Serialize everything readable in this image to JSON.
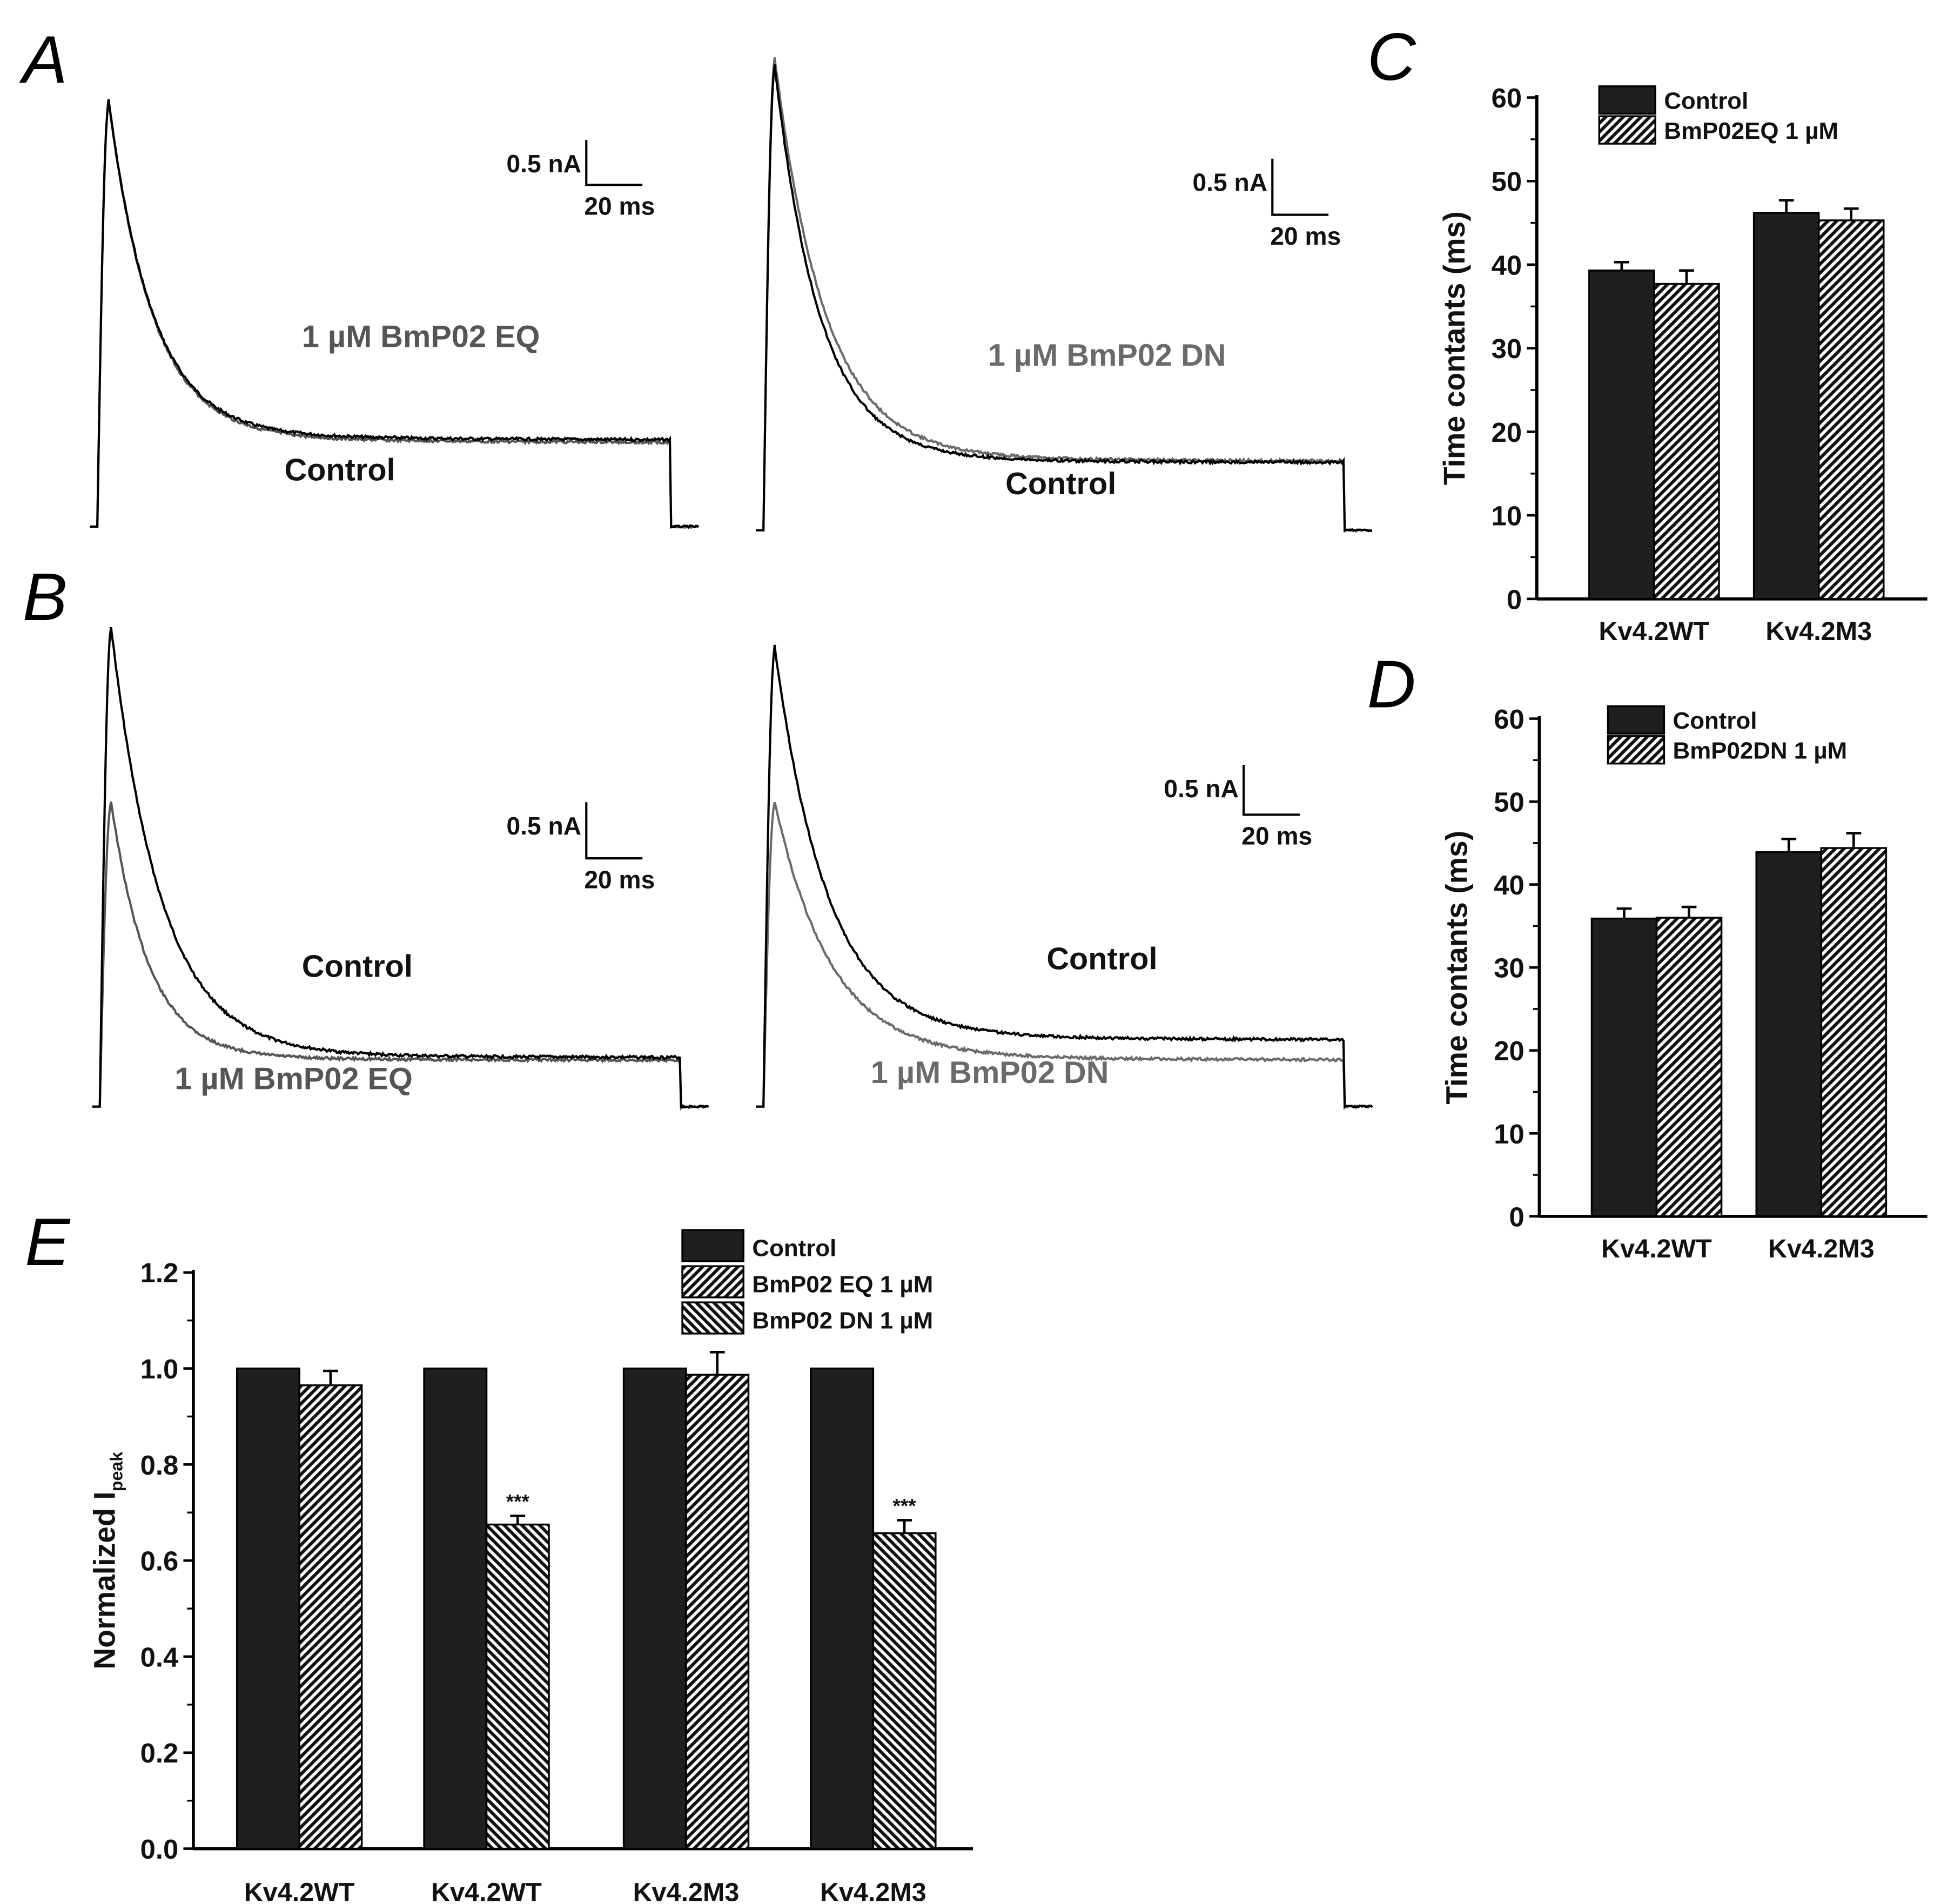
{
  "panels": {
    "A": "A",
    "B": "B",
    "C": "C",
    "D": "D",
    "E": "E"
  },
  "colors": {
    "control": "#000000",
    "treated": "#555555",
    "bar": "#1f1f1f"
  },
  "traces": {
    "A_left": {
      "treated_label": "1 µM BmP02 EQ",
      "control_label": "Control",
      "scale_current": "0.5 nA",
      "scale_time": "20 ms",
      "treated_peak_fraction": 1.0
    },
    "A_right": {
      "treated_label": "1 µM BmP02 DN",
      "control_label": "Control",
      "scale_current": "0.5 nA",
      "scale_time": "20 ms",
      "treated_peak_fraction": 1.0
    },
    "B_left": {
      "treated_label": "1 µM BmP02 EQ",
      "control_label": "Control",
      "scale_current": "0.5 nA",
      "scale_time": "20 ms",
      "treated_peak_fraction": 0.63
    },
    "B_right": {
      "treated_label": "1 µM BmP02 DN",
      "control_label": "Control",
      "scale_current": "0.5 nA",
      "scale_time": "20 ms",
      "treated_peak_fraction": 0.67
    }
  },
  "chart_data": [
    {
      "id": "C",
      "type": "bar",
      "ylabel": "Time contants (ms)",
      "ylim": [
        0,
        60
      ],
      "yticks": [
        "0",
        "10",
        "20",
        "30",
        "40",
        "50",
        "60"
      ],
      "categories": [
        "Kv4.2WT",
        "Kv4.2M3"
      ],
      "series": [
        {
          "name": "Control",
          "values": [
            39.3,
            46.2
          ],
          "errors": [
            1.0,
            1.5
          ],
          "pattern": "solid"
        },
        {
          "name": "BmP02EQ 1 µM",
          "values": [
            37.7,
            45.3
          ],
          "errors": [
            1.6,
            1.4
          ],
          "pattern": "hatch-back"
        }
      ]
    },
    {
      "id": "D",
      "type": "bar",
      "ylabel": "Time contants (ms)",
      "ylim": [
        0,
        60
      ],
      "yticks": [
        "0",
        "10",
        "20",
        "30",
        "40",
        "50",
        "60"
      ],
      "categories": [
        "Kv4.2WT",
        "Kv4.2M3"
      ],
      "series": [
        {
          "name": "Control",
          "values": [
            35.9,
            43.9
          ],
          "errors": [
            1.2,
            1.6
          ],
          "pattern": "solid"
        },
        {
          "name": "BmP02DN 1 µM",
          "values": [
            36.0,
            44.4
          ],
          "errors": [
            1.3,
            1.8
          ],
          "pattern": "hatch-back"
        }
      ]
    },
    {
      "id": "E",
      "type": "bar",
      "ylabel": "Normalized I",
      "ylabel_sub": "peak",
      "ylim": [
        0,
        1.2
      ],
      "yticks": [
        "0.0",
        "0.2",
        "0.4",
        "0.6",
        "0.8",
        "1.0",
        "1.2"
      ],
      "categories": [
        "Kv4.2WT",
        "Kv4.2WT",
        "Kv4.2M3",
        "Kv4.2M3"
      ],
      "legend": [
        "Control",
        "BmP02 EQ 1 µM",
        "BmP02 DN 1 µM"
      ],
      "bars": [
        {
          "series": "Control",
          "values": [
            1.0,
            1.0,
            1.0,
            1.0
          ]
        },
        {
          "series_per_group": [
            "BmP02 EQ 1 µM",
            "BmP02 DN 1 µM",
            "BmP02 EQ 1 µM",
            "BmP02 DN 1 µM"
          ],
          "values": [
            0.965,
            0.675,
            0.987,
            0.657
          ],
          "errors": [
            0.03,
            0.018,
            0.047,
            0.027
          ],
          "annotations": [
            "",
            "***",
            "",
            "***"
          ]
        }
      ]
    }
  ]
}
